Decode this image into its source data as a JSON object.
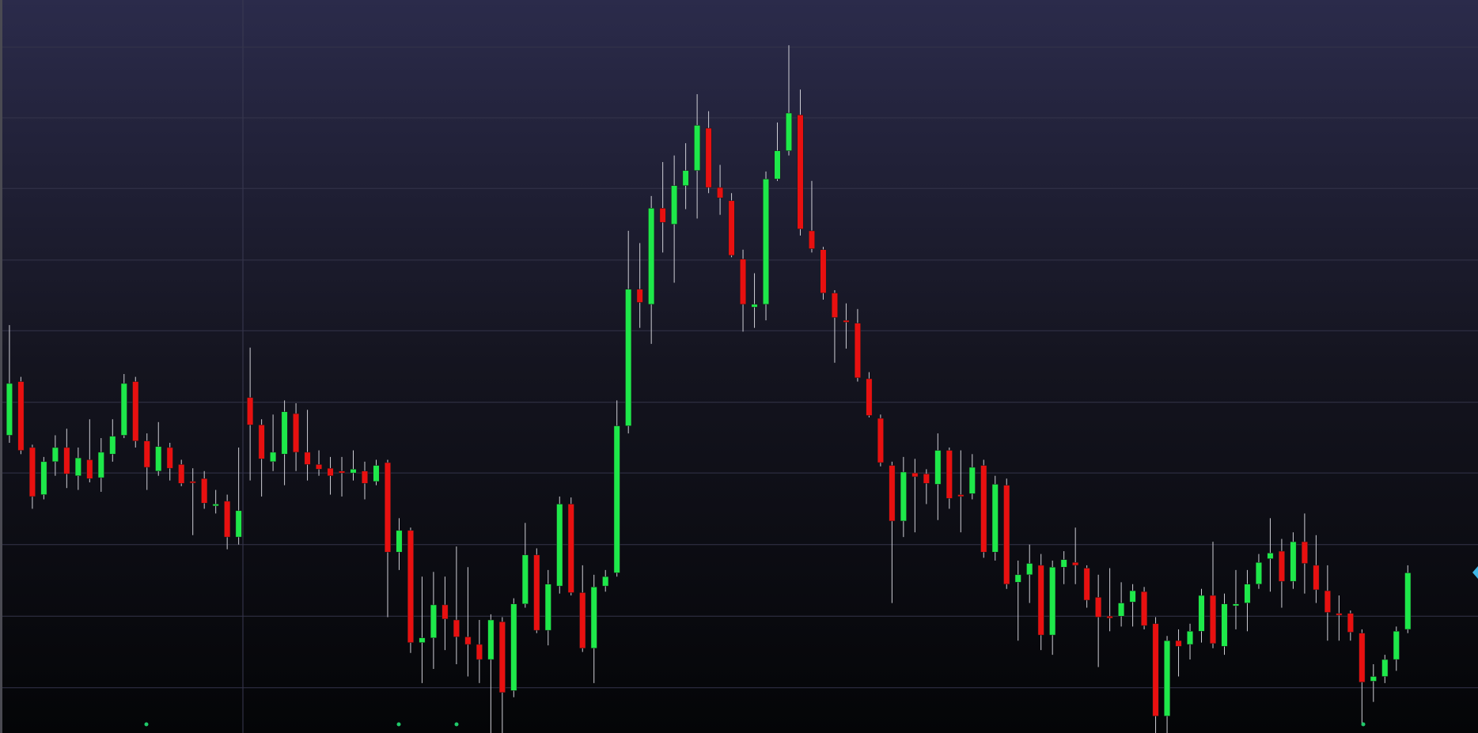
{
  "chart_data": {
    "type": "candlestick",
    "up_color": "#1ee84a",
    "down_color": "#e81010",
    "ylim": [
      0,
      778
    ],
    "yticks": [
      48,
      124,
      200,
      276,
      351,
      427,
      502,
      578,
      653,
      728
    ],
    "grid": true,
    "series": [
      {
        "name": "open",
        "values": [
          316,
          373,
          303,
          253,
          288,
          303,
          273,
          290,
          271,
          296,
          316,
          373,
          310,
          278,
          303,
          285,
          267,
          270,
          241,
          246,
          208,
          356,
          327,
          288,
          296,
          339,
          298,
          285,
          281,
          278,
          276,
          278,
          267,
          287,
          192,
          215,
          96,
          101,
          136,
          120,
          102,
          94,
          78,
          118,
          45,
          137,
          189,
          109,
          156,
          243,
          149,
          90,
          156,
          170,
          326,
          471,
          455,
          557,
          540,
          581,
          597,
          642,
          579,
          565,
          503,
          452,
          455,
          588,
          618,
          656,
          533,
          513,
          467,
          438,
          435,
          376,
          334,
          284,
          225,
          276,
          275,
          264,
          300,
          253,
          254,
          284,
          192,
          263,
          160,
          168,
          178,
          104,
          176,
          181,
          175,
          144,
          124,
          124,
          139,
          150,
          116,
          18,
          98,
          94,
          108,
          146,
          92,
          135,
          138,
          158,
          185,
          193,
          161,
          203,
          178,
          151,
          127,
          127,
          106,
          55,
          60,
          78,
          110
        ]
      },
      {
        "name": "high",
        "values": [
          433,
          378,
          306,
          293,
          316,
          323,
          303,
          333,
          313,
          333,
          381,
          378,
          318,
          330,
          308,
          290,
          281,
          278,
          258,
          253,
          303,
          409,
          333,
          338,
          353,
          350,
          343,
          300,
          293,
          293,
          300,
          288,
          290,
          290,
          228,
          218,
          166,
          171,
          166,
          198,
          176,
          120,
          126,
          123,
          143,
          223,
          196,
          173,
          251,
          250,
          178,
          168,
          173,
          353,
          533,
          520,
          570,
          606,
          613,
          626,
          678,
          660,
          603,
          573,
          513,
          488,
          596,
          648,
          730,
          683,
          586,
          516,
          470,
          456,
          450,
          383,
          338,
          288,
          293,
          291,
          280,
          318,
          303,
          300,
          296,
          290,
          273,
          270,
          183,
          200,
          190,
          183,
          193,
          218,
          178,
          168,
          175,
          160,
          158,
          155,
          123,
          103,
          110,
          116,
          153,
          203,
          148,
          173,
          173,
          190,
          228,
          206,
          213,
          233,
          210,
          178,
          146,
          130,
          110,
          73,
          83,
          113,
          178
        ]
      },
      {
        "name": "low",
        "values": [
          308,
          296,
          238,
          248,
          273,
          260,
          258,
          266,
          256,
          288,
          313,
          303,
          258,
          273,
          268,
          262,
          210,
          238,
          233,
          195,
          200,
          268,
          251,
          278,
          263,
          278,
          268,
          273,
          253,
          251,
          268,
          248,
          263,
          123,
          173,
          85,
          53,
          68,
          88,
          73,
          60,
          53,
          0,
          0,
          38,
          133,
          106,
          93,
          148,
          146,
          86,
          53,
          150,
          166,
          318,
          430,
          413,
          510,
          478,
          556,
          546,
          573,
          550,
          505,
          426,
          430,
          438,
          586,
          613,
          528,
          510,
          460,
          393,
          408,
          373,
          335,
          283,
          138,
          208,
          213,
          243,
          226,
          238,
          213,
          248,
          186,
          183,
          153,
          98,
          138,
          88,
          83,
          158,
          158,
          133,
          70,
          108,
          113,
          113,
          110,
          0,
          0,
          60,
          78,
          96,
          90,
          83,
          110,
          108,
          153,
          150,
          133,
          153,
          148,
          138,
          98,
          98,
          98,
          8,
          33,
          53,
          66,
          106
        ]
      },
      {
        "name": "close",
        "values": [
          371,
          300,
          251,
          288,
          303,
          275,
          292,
          270,
          298,
          315,
          371,
          310,
          282,
          304,
          281,
          265,
          266,
          244,
          243,
          208,
          236,
          327,
          291,
          298,
          341,
          298,
          285,
          280,
          273,
          276,
          280,
          265,
          284,
          192,
          215,
          96,
          101,
          136,
          121,
          102,
          94,
          78,
          120,
          43,
          137,
          189,
          109,
          158,
          243,
          149,
          90,
          155,
          166,
          326,
          471,
          457,
          557,
          542,
          581,
          597,
          645,
          579,
          568,
          507,
          455,
          455,
          588,
          618,
          658,
          535,
          514,
          467,
          441,
          436,
          377,
          337,
          287,
          225,
          277,
          272,
          265,
          300,
          249,
          251,
          282,
          192,
          264,
          158,
          168,
          180,
          104,
          176,
          184,
          178,
          141,
          123,
          122,
          138,
          151,
          114,
          18,
          98,
          92,
          108,
          146,
          95,
          137,
          137,
          158,
          181,
          191,
          161,
          203,
          180,
          152,
          128,
          125,
          107,
          54,
          60,
          78,
          108,
          170
        ]
      }
    ]
  }
}
